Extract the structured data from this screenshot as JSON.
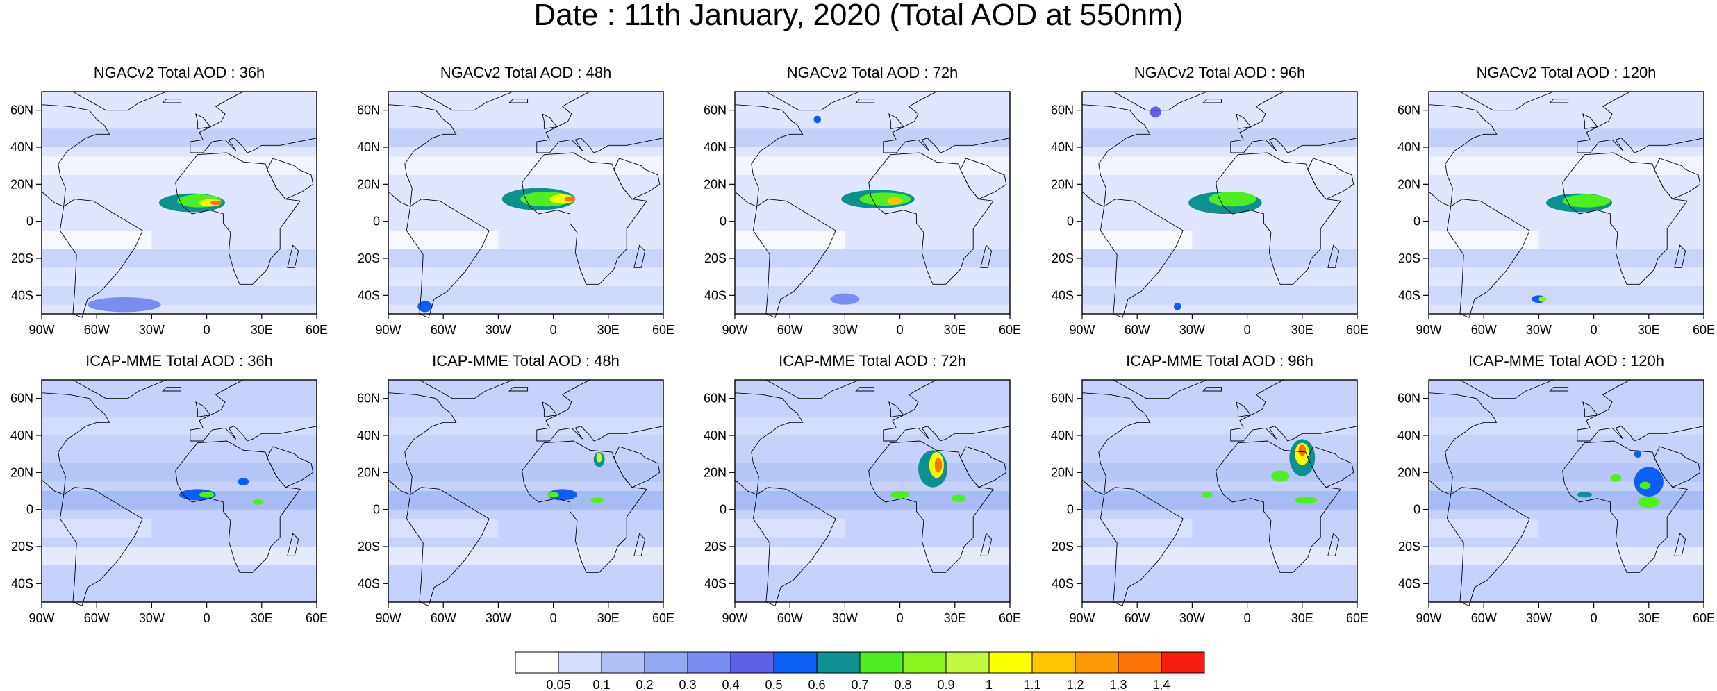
{
  "title": "Date : 11th January, 2020 (Total AOD at 550nm)",
  "panels": [
    {
      "title": "NGACv2 Total AOD : 36h"
    },
    {
      "title": "NGACv2 Total AOD : 48h"
    },
    {
      "title": "NGACv2 Total AOD : 72h"
    },
    {
      "title": "NGACv2 Total AOD : 96h"
    },
    {
      "title": "NGACv2 Total AOD : 120h"
    },
    {
      "title": "ICAP-MME Total AOD : 36h"
    },
    {
      "title": "ICAP-MME Total AOD : 48h"
    },
    {
      "title": "ICAP-MME Total AOD : 72h"
    },
    {
      "title": "ICAP-MME Total AOD : 96h"
    },
    {
      "title": "ICAP-MME Total AOD : 120h"
    }
  ],
  "map_axes": {
    "lon_range": [
      -90,
      60
    ],
    "lat_range": [
      -50,
      70
    ],
    "x_ticks": [
      {
        "value": -90,
        "label": "90W"
      },
      {
        "value": -60,
        "label": "60W"
      },
      {
        "value": -30,
        "label": "30W"
      },
      {
        "value": 0,
        "label": "0"
      },
      {
        "value": 30,
        "label": "30E"
      },
      {
        "value": 60,
        "label": "60E"
      }
    ],
    "y_ticks": [
      {
        "value": 60,
        "label": "60N"
      },
      {
        "value": 40,
        "label": "40N"
      },
      {
        "value": 20,
        "label": "20N"
      },
      {
        "value": 0,
        "label": "0"
      },
      {
        "value": -20,
        "label": "20S"
      },
      {
        "value": -40,
        "label": "40S"
      }
    ]
  },
  "colorbar": {
    "levels": [
      "0.05",
      "0.1",
      "0.2",
      "0.3",
      "0.4",
      "0.5",
      "0.6",
      "0.7",
      "0.8",
      "0.9",
      "1",
      "1.1",
      "1.2",
      "1.3",
      "1.4"
    ],
    "colors": [
      "#ffffff",
      "#d3dcfb",
      "#b0c0f6",
      "#90a9f2",
      "#7b8df0",
      "#6061e8",
      "#0d5ef7",
      "#0c9190",
      "#4fee22",
      "#8af31c",
      "#c2f83e",
      "#fbfe00",
      "#fdc501",
      "#fe9901",
      "#fc7204",
      "#f81b12"
    ]
  },
  "colors": {
    "background_light": "#dfe6fd",
    "continent_outline": "#000000"
  }
}
